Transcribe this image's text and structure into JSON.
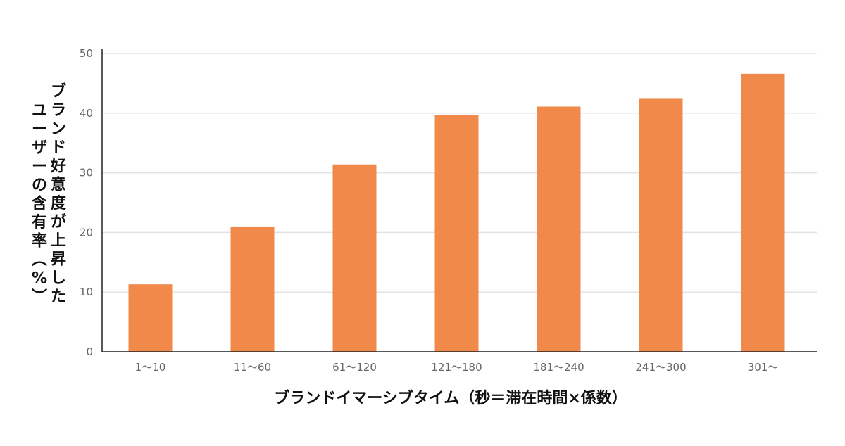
{
  "chart_data": {
    "type": "bar",
    "categories": [
      "1〜10",
      "11〜60",
      "61〜120",
      "121〜180",
      "181〜240",
      "241〜300",
      "301〜"
    ],
    "values": [
      11.3,
      21.0,
      31.4,
      39.7,
      41.1,
      42.4,
      46.6
    ],
    "title": "",
    "xlabel": "ブランドイマーシブタイム（秒＝滞在時間×係数）",
    "ylabel_lines": [
      "ブランド好意度が上昇した",
      "ユーザーの含有率（%）"
    ],
    "ylim": [
      0,
      50
    ],
    "yticks": [
      0,
      10,
      20,
      30,
      40,
      50
    ],
    "grid": true,
    "legend": "none",
    "colors": {
      "bar": "#F0894A",
      "grid": "#E3E3E3",
      "axis": "#222222",
      "tick_text": "#666666",
      "label_text": "#111111"
    }
  }
}
